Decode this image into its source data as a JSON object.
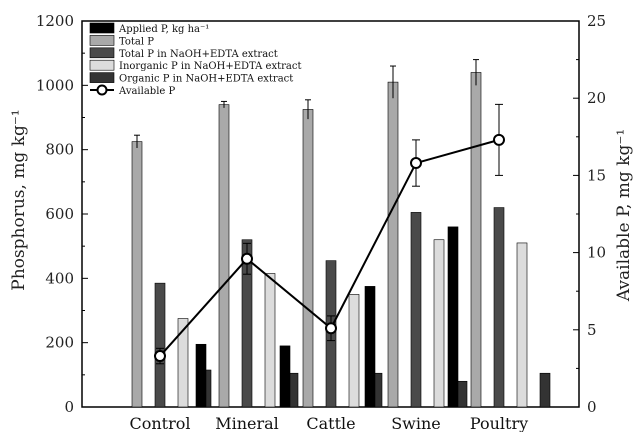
{
  "chart_data": {
    "type": "bar",
    "categories": [
      "Control",
      "Mineral",
      "Cattle",
      "Swine",
      "Poultry"
    ],
    "series": [
      {
        "name": "Applied P,  kg ha⁻¹",
        "color": "#000000",
        "values": [
          0,
          195,
          190,
          375,
          560
        ]
      },
      {
        "name": "Total P",
        "color": "#a9a9a9",
        "values": [
          825,
          940,
          925,
          1010,
          1040
        ],
        "error": [
          20,
          10,
          30,
          50,
          40
        ]
      },
      {
        "name": "Total P in NaOH+EDTA extract",
        "color": "#4a4a4a",
        "values": [
          385,
          520,
          455,
          605,
          620
        ]
      },
      {
        "name": "Inorganic P in NaOH+EDTA extract",
        "color": "#dcdcdc",
        "values": [
          275,
          415,
          350,
          520,
          510
        ]
      },
      {
        "name": "Organic P  in NaOH+EDTA extract",
        "color": "#333333",
        "values": [
          115,
          105,
          105,
          80,
          105
        ]
      }
    ],
    "line_series": {
      "name": "Available P",
      "axis": "right",
      "values": [
        3.3,
        9.6,
        5.1,
        15.8,
        17.3
      ],
      "error": [
        0.5,
        1.0,
        0.8,
        1.5,
        2.3
      ]
    },
    "ylabel": "Phosphorus, mg kg⁻¹",
    "ylabel_right": "Available P, mg kg⁻¹",
    "ylim": [
      0,
      1200
    ],
    "ylim_right": [
      0,
      25
    ],
    "yticks": [
      "0",
      "200",
      "400",
      "600",
      "800",
      "1000",
      "1200"
    ],
    "yticks_right": [
      "0",
      "5",
      "10",
      "15",
      "20",
      "25"
    ],
    "legend_position": "top-left",
    "grid": false
  }
}
